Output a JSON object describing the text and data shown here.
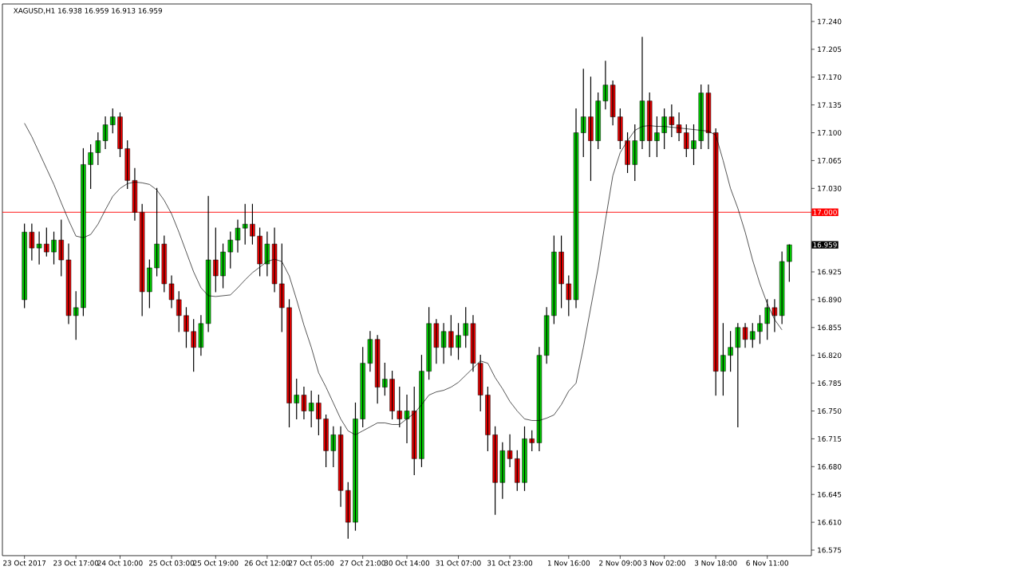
{
  "chart_data": {
    "type": "candlestick",
    "title": "XAGUSD,H1  16.938 16.959 16.913 16.959",
    "categories": [
      "23 Oct 2017",
      null,
      null,
      null,
      null,
      null,
      null,
      "23 Oct 17:00",
      null,
      null,
      null,
      null,
      null,
      "24 Oct 10:00",
      null,
      null,
      null,
      null,
      null,
      null,
      "25 Oct 03:00",
      null,
      null,
      null,
      null,
      null,
      "25 Oct 19:00",
      null,
      null,
      null,
      null,
      null,
      null,
      "26 Oct 12:00",
      null,
      null,
      null,
      null,
      null,
      "27 Oct 05:00",
      null,
      null,
      null,
      null,
      null,
      null,
      "27 Oct 21:00",
      null,
      null,
      null,
      null,
      null,
      "30 Oct 14:00",
      null,
      null,
      null,
      null,
      null,
      null,
      "31 Oct 07:00",
      null,
      null,
      null,
      null,
      null,
      null,
      "31 Oct 23:00",
      null,
      null,
      null,
      null,
      null,
      null,
      null,
      "1 Nov 16:00",
      null,
      null,
      null,
      null,
      null,
      null,
      "2 Nov 09:00",
      null,
      null,
      null,
      null,
      null,
      "3 Nov 02:00",
      null,
      null,
      null,
      null,
      null,
      null,
      "3 Nov 18:00",
      null,
      null,
      null,
      null,
      null,
      null,
      "6 Nov 11:00",
      null,
      null,
      null
    ],
    "ohlc": [
      [
        16.89,
        16.985,
        16.88,
        16.975
      ],
      [
        16.975,
        16.985,
        16.94,
        16.955
      ],
      [
        16.955,
        16.975,
        16.935,
        16.96
      ],
      [
        16.96,
        16.98,
        16.945,
        16.95
      ],
      [
        16.95,
        16.975,
        16.935,
        16.965
      ],
      [
        16.965,
        16.99,
        16.92,
        16.94
      ],
      [
        16.94,
        16.96,
        16.86,
        16.87
      ],
      [
        16.87,
        16.9,
        16.84,
        16.88
      ],
      [
        16.88,
        17.08,
        16.87,
        17.06
      ],
      [
        17.06,
        17.085,
        17.03,
        17.075
      ],
      [
        17.075,
        17.1,
        17.06,
        17.09
      ],
      [
        17.09,
        17.12,
        17.08,
        17.11
      ],
      [
        17.11,
        17.13,
        17.1,
        17.12
      ],
      [
        17.12,
        17.125,
        17.07,
        17.08
      ],
      [
        17.08,
        17.09,
        17.03,
        17.04
      ],
      [
        17.04,
        17.055,
        16.99,
        17.0
      ],
      [
        17.0,
        17.01,
        16.87,
        16.9
      ],
      [
        16.9,
        16.94,
        16.88,
        16.93
      ],
      [
        16.93,
        17.03,
        16.92,
        16.96
      ],
      [
        16.96,
        16.97,
        16.9,
        16.91
      ],
      [
        16.91,
        16.92,
        16.88,
        16.89
      ],
      [
        16.89,
        16.9,
        16.85,
        16.87
      ],
      [
        16.87,
        16.88,
        16.83,
        16.85
      ],
      [
        16.85,
        16.865,
        16.8,
        16.83
      ],
      [
        16.83,
        16.87,
        16.82,
        16.86
      ],
      [
        16.86,
        17.02,
        16.85,
        16.94
      ],
      [
        16.94,
        16.98,
        16.9,
        16.92
      ],
      [
        16.92,
        16.96,
        16.905,
        16.95
      ],
      [
        16.95,
        16.975,
        16.93,
        16.965
      ],
      [
        16.965,
        16.99,
        16.95,
        16.98
      ],
      [
        16.98,
        17.01,
        16.96,
        16.985
      ],
      [
        16.985,
        17.01,
        16.96,
        16.97
      ],
      [
        16.97,
        16.98,
        16.92,
        16.935
      ],
      [
        16.935,
        16.975,
        16.92,
        16.96
      ],
      [
        16.96,
        16.98,
        16.9,
        16.91
      ],
      [
        16.91,
        16.96,
        16.85,
        16.88
      ],
      [
        16.88,
        16.89,
        16.73,
        16.76
      ],
      [
        16.76,
        16.79,
        16.74,
        16.77
      ],
      [
        16.77,
        16.78,
        16.74,
        16.75
      ],
      [
        16.75,
        16.775,
        16.73,
        16.76
      ],
      [
        16.76,
        16.77,
        16.72,
        16.74
      ],
      [
        16.74,
        16.745,
        16.68,
        16.7
      ],
      [
        16.7,
        16.73,
        16.68,
        16.72
      ],
      [
        16.72,
        16.73,
        16.63,
        16.65
      ],
      [
        16.65,
        16.66,
        16.59,
        16.61
      ],
      [
        16.61,
        16.76,
        16.6,
        16.74
      ],
      [
        16.74,
        16.83,
        16.73,
        16.81
      ],
      [
        16.81,
        16.85,
        16.8,
        16.84
      ],
      [
        16.84,
        16.845,
        16.76,
        16.78
      ],
      [
        16.78,
        16.81,
        16.77,
        16.79
      ],
      [
        16.79,
        16.8,
        16.74,
        16.75
      ],
      [
        16.75,
        16.78,
        16.73,
        16.74
      ],
      [
        16.74,
        16.77,
        16.71,
        16.75
      ],
      [
        16.75,
        16.78,
        16.67,
        16.69
      ],
      [
        16.69,
        16.82,
        16.68,
        16.8
      ],
      [
        16.8,
        16.88,
        16.79,
        16.86
      ],
      [
        16.86,
        16.865,
        16.81,
        16.83
      ],
      [
        16.83,
        16.86,
        16.81,
        16.85
      ],
      [
        16.85,
        16.87,
        16.82,
        16.83
      ],
      [
        16.83,
        16.86,
        16.815,
        16.845
      ],
      [
        16.845,
        16.88,
        16.83,
        16.86
      ],
      [
        16.86,
        16.87,
        16.8,
        16.81
      ],
      [
        16.81,
        16.82,
        16.75,
        16.77
      ],
      [
        16.77,
        16.78,
        16.7,
        16.72
      ],
      [
        16.72,
        16.73,
        16.62,
        16.66
      ],
      [
        16.66,
        16.71,
        16.64,
        16.7
      ],
      [
        16.7,
        16.72,
        16.68,
        16.69
      ],
      [
        16.69,
        16.7,
        16.65,
        16.66
      ],
      [
        16.66,
        16.73,
        16.65,
        16.715
      ],
      [
        16.715,
        16.725,
        16.7,
        16.71
      ],
      [
        16.71,
        16.83,
        16.7,
        16.82
      ],
      [
        16.82,
        16.88,
        16.81,
        16.87
      ],
      [
        16.87,
        16.97,
        16.86,
        16.95
      ],
      [
        16.95,
        16.97,
        16.88,
        16.91
      ],
      [
        16.91,
        16.92,
        16.87,
        16.89
      ],
      [
        16.89,
        17.13,
        16.88,
        17.1
      ],
      [
        17.1,
        17.18,
        17.07,
        17.12
      ],
      [
        17.12,
        17.17,
        17.04,
        17.09
      ],
      [
        17.09,
        17.15,
        17.08,
        17.14
      ],
      [
        17.14,
        17.19,
        17.13,
        17.16
      ],
      [
        17.16,
        17.165,
        17.11,
        17.12
      ],
      [
        17.12,
        17.13,
        17.08,
        17.09
      ],
      [
        17.09,
        17.1,
        17.05,
        17.06
      ],
      [
        17.06,
        17.11,
        17.04,
        17.09
      ],
      [
        17.09,
        17.22,
        17.08,
        17.14
      ],
      [
        17.14,
        17.15,
        17.07,
        17.09
      ],
      [
        17.09,
        17.12,
        17.07,
        17.1
      ],
      [
        17.1,
        17.13,
        17.08,
        17.12
      ],
      [
        17.12,
        17.135,
        17.095,
        17.11
      ],
      [
        17.11,
        17.125,
        17.09,
        17.1
      ],
      [
        17.1,
        17.11,
        17.07,
        17.08
      ],
      [
        17.08,
        17.11,
        17.06,
        17.09
      ],
      [
        17.09,
        17.16,
        17.08,
        17.15
      ],
      [
        17.15,
        17.16,
        17.08,
        17.1
      ],
      [
        17.1,
        17.105,
        16.77,
        16.8
      ],
      [
        16.8,
        16.86,
        16.77,
        16.82
      ],
      [
        16.82,
        16.85,
        16.8,
        16.83
      ],
      [
        16.83,
        16.86,
        16.73,
        16.855
      ],
      [
        16.855,
        16.86,
        16.83,
        16.84
      ],
      [
        16.84,
        16.86,
        16.83,
        16.85
      ],
      [
        16.85,
        16.87,
        16.835,
        16.86
      ],
      [
        16.86,
        16.89,
        16.84,
        16.88
      ],
      [
        16.88,
        16.89,
        16.85,
        16.87
      ],
      [
        16.87,
        16.95,
        16.86,
        16.938
      ],
      [
        16.938,
        16.959,
        16.913,
        16.959
      ]
    ],
    "series": [
      {
        "type": "line",
        "color": "#000000",
        "values": [
          17.112,
          17.095,
          17.075,
          17.055,
          17.035,
          17.012,
          16.99,
          16.97,
          16.968,
          16.972,
          16.985,
          17.003,
          17.02,
          17.03,
          17.036,
          17.038,
          17.037,
          17.035,
          17.028,
          17.015,
          16.998,
          16.975,
          16.95,
          16.925,
          16.905,
          16.895,
          16.894,
          16.895,
          16.896,
          16.905,
          16.915,
          16.924,
          16.931,
          16.938,
          16.941,
          16.938,
          16.92,
          16.89,
          16.858,
          16.83,
          16.798,
          16.78,
          16.76,
          16.74,
          16.725,
          16.72,
          16.725,
          16.73,
          16.735,
          16.735,
          16.733,
          16.733,
          16.74,
          16.747,
          16.758,
          16.77,
          16.774,
          16.776,
          16.78,
          16.786,
          16.795,
          16.804,
          16.813,
          16.81,
          16.792,
          16.778,
          16.762,
          16.75,
          16.74,
          16.738,
          16.738,
          16.741,
          16.745,
          16.758,
          16.775,
          16.785,
          16.83,
          16.88,
          16.93,
          16.99,
          17.046,
          17.075,
          17.09,
          17.103,
          17.108,
          17.109,
          17.108,
          17.108,
          17.107,
          17.106,
          17.105,
          17.104,
          17.103,
          17.102,
          17.097,
          17.065,
          17.03,
          17.005,
          16.975,
          16.94,
          16.91,
          16.885,
          16.865,
          16.852,
          null
        ]
      }
    ],
    "ylim": [
      16.568,
      17.262
    ],
    "yticks": [
      {
        "value": 17.24,
        "label": "17.240"
      },
      {
        "value": 17.205,
        "label": "17.205"
      },
      {
        "value": 17.17,
        "label": "17.170"
      },
      {
        "value": 17.135,
        "label": "17.135"
      },
      {
        "value": 17.1,
        "label": "17.100"
      },
      {
        "value": 17.065,
        "label": "17.065"
      },
      {
        "value": 17.03,
        "label": "17.030"
      },
      {
        "value": 16.925,
        "label": "16.925"
      },
      {
        "value": 16.89,
        "label": "16.890"
      },
      {
        "value": 16.855,
        "label": "16.855"
      },
      {
        "value": 16.82,
        "label": "16.820"
      },
      {
        "value": 16.785,
        "label": "16.785"
      },
      {
        "value": 16.75,
        "label": "16.750"
      },
      {
        "value": 16.715,
        "label": "16.715"
      },
      {
        "value": 16.68,
        "label": "16.680"
      },
      {
        "value": 16.645,
        "label": "16.645"
      },
      {
        "value": 16.61,
        "label": "16.610"
      },
      {
        "value": 16.575,
        "label": "16.575"
      }
    ],
    "ref_lines": [
      {
        "axis": "y",
        "value": 17.0,
        "label": "17.000",
        "color": "#ff0000"
      }
    ],
    "annotations": [
      "16.959"
    ]
  }
}
